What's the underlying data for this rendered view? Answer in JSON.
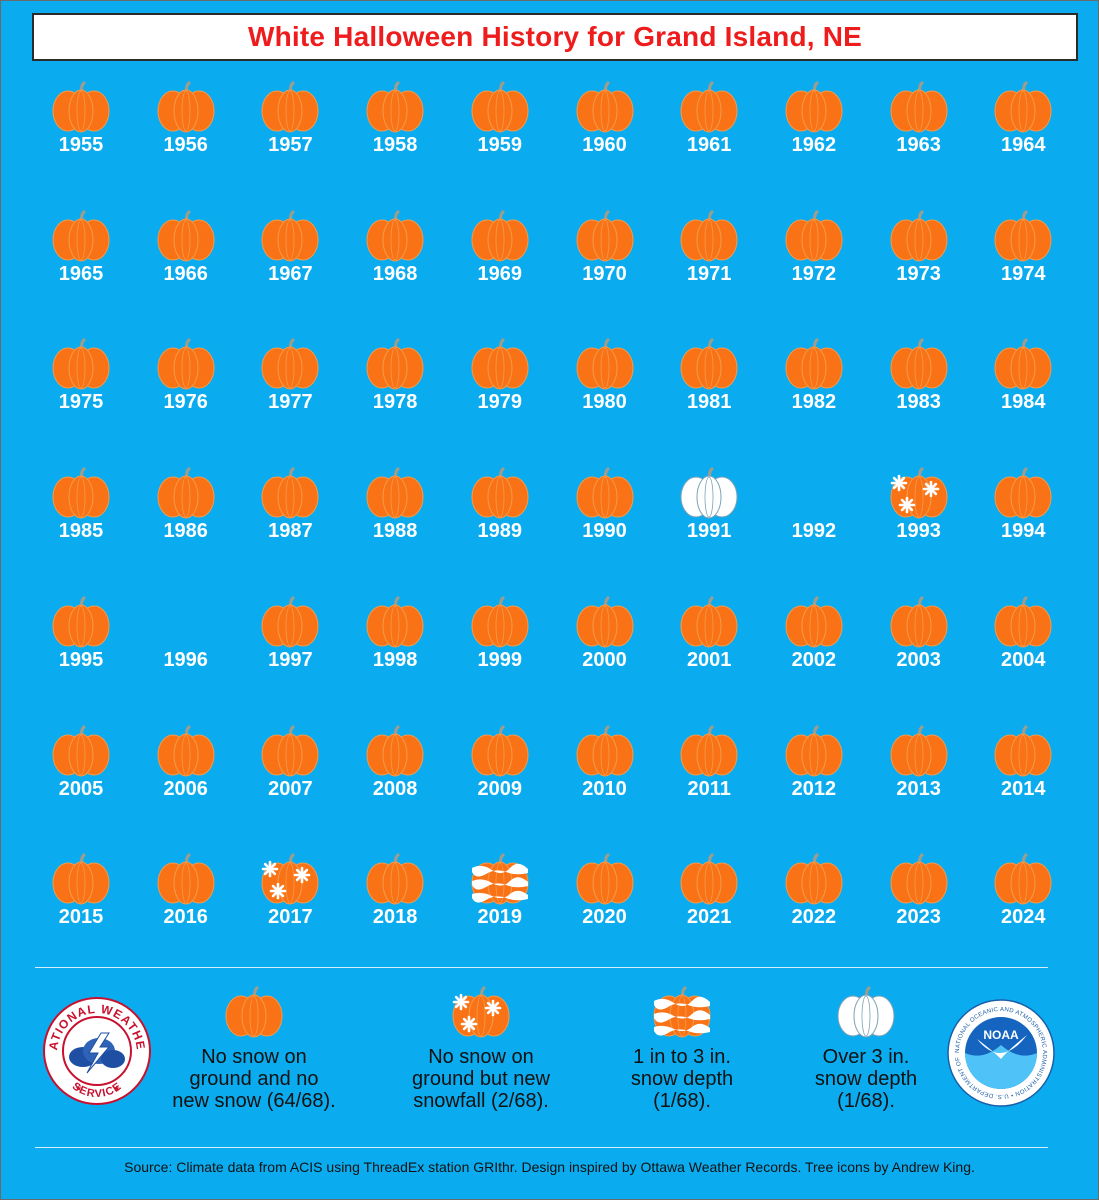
{
  "title": "White Halloween History for Grand Island, NE",
  "colors": {
    "background": "#0aacef",
    "pumpkin": "#f97316",
    "pumpkin_rib": "#f59a4a",
    "stem": "#9c9c8f",
    "snow": "#ffffff",
    "title_text": "#ee1c1c"
  },
  "chart_data": {
    "type": "pictogram-grid",
    "title": "White Halloween History for Grand Island, NE",
    "categories": {
      "none": "No snow on ground and no new snow",
      "newsnow": "No snow on ground but new snowfall",
      "depth1to3": "1 in to 3 in. snow depth",
      "over3": "Over 3 in. snow depth"
    },
    "years": [
      {
        "year": 1955,
        "category": "none"
      },
      {
        "year": 1956,
        "category": "none"
      },
      {
        "year": 1957,
        "category": "none"
      },
      {
        "year": 1958,
        "category": "none"
      },
      {
        "year": 1959,
        "category": "none"
      },
      {
        "year": 1960,
        "category": "none"
      },
      {
        "year": 1961,
        "category": "none"
      },
      {
        "year": 1962,
        "category": "none"
      },
      {
        "year": 1963,
        "category": "none"
      },
      {
        "year": 1964,
        "category": "none"
      },
      {
        "year": 1965,
        "category": "none"
      },
      {
        "year": 1966,
        "category": "none"
      },
      {
        "year": 1967,
        "category": "none"
      },
      {
        "year": 1968,
        "category": "none"
      },
      {
        "year": 1969,
        "category": "none"
      },
      {
        "year": 1970,
        "category": "none"
      },
      {
        "year": 1971,
        "category": "none"
      },
      {
        "year": 1972,
        "category": "none"
      },
      {
        "year": 1973,
        "category": "none"
      },
      {
        "year": 1974,
        "category": "none"
      },
      {
        "year": 1975,
        "category": "none"
      },
      {
        "year": 1976,
        "category": "none"
      },
      {
        "year": 1977,
        "category": "none"
      },
      {
        "year": 1978,
        "category": "none"
      },
      {
        "year": 1979,
        "category": "none"
      },
      {
        "year": 1980,
        "category": "none"
      },
      {
        "year": 1981,
        "category": "none"
      },
      {
        "year": 1982,
        "category": "none"
      },
      {
        "year": 1983,
        "category": "none"
      },
      {
        "year": 1984,
        "category": "none"
      },
      {
        "year": 1985,
        "category": "none"
      },
      {
        "year": 1986,
        "category": "none"
      },
      {
        "year": 1987,
        "category": "none"
      },
      {
        "year": 1988,
        "category": "none"
      },
      {
        "year": 1989,
        "category": "none"
      },
      {
        "year": 1990,
        "category": "none"
      },
      {
        "year": 1991,
        "category": "over3"
      },
      {
        "year": 1992,
        "category": "missing"
      },
      {
        "year": 1993,
        "category": "newsnow"
      },
      {
        "year": 1994,
        "category": "none"
      },
      {
        "year": 1995,
        "category": "none"
      },
      {
        "year": 1996,
        "category": "missing"
      },
      {
        "year": 1997,
        "category": "none"
      },
      {
        "year": 1998,
        "category": "none"
      },
      {
        "year": 1999,
        "category": "none"
      },
      {
        "year": 2000,
        "category": "none"
      },
      {
        "year": 2001,
        "category": "none"
      },
      {
        "year": 2002,
        "category": "none"
      },
      {
        "year": 2003,
        "category": "none"
      },
      {
        "year": 2004,
        "category": "none"
      },
      {
        "year": 2005,
        "category": "none"
      },
      {
        "year": 2006,
        "category": "none"
      },
      {
        "year": 2007,
        "category": "none"
      },
      {
        "year": 2008,
        "category": "none"
      },
      {
        "year": 2009,
        "category": "none"
      },
      {
        "year": 2010,
        "category": "none"
      },
      {
        "year": 2011,
        "category": "none"
      },
      {
        "year": 2012,
        "category": "none"
      },
      {
        "year": 2013,
        "category": "none"
      },
      {
        "year": 2014,
        "category": "none"
      },
      {
        "year": 2015,
        "category": "none"
      },
      {
        "year": 2016,
        "category": "none"
      },
      {
        "year": 2017,
        "category": "newsnow"
      },
      {
        "year": 2018,
        "category": "none"
      },
      {
        "year": 2019,
        "category": "depth1to3"
      },
      {
        "year": 2020,
        "category": "none"
      },
      {
        "year": 2021,
        "category": "none"
      },
      {
        "year": 2022,
        "category": "none"
      },
      {
        "year": 2023,
        "category": "none"
      },
      {
        "year": 2024,
        "category": "none"
      }
    ]
  },
  "legend": [
    {
      "category": "none",
      "text": "No snow on\nground and no\nnew snow (64/68)."
    },
    {
      "category": "newsnow",
      "text": "No snow on\nground but new\nsnowfall (2/68)."
    },
    {
      "category": "depth1to3",
      "text": "1 in to 3 in.\nsnow depth\n(1/68)."
    },
    {
      "category": "over3",
      "text": "Over 3 in.\nsnow depth\n(1/68)."
    }
  ],
  "logos": {
    "nws": {
      "icon": "nws-logo",
      "text": "NATIONAL WEATHER SERVICE"
    },
    "noaa": {
      "icon": "noaa-logo",
      "text": "NOAA"
    }
  },
  "source": "Source: Climate data from ACIS using ThreadEx station GRIthr. Design inspired by Ottawa Weather Records. Tree icons by Andrew King."
}
